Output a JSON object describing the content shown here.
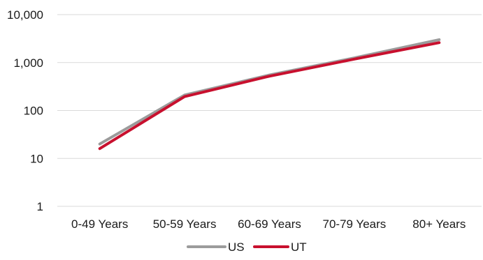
{
  "chart_data": {
    "type": "line",
    "title": "",
    "xlabel": "",
    "ylabel": "",
    "yscale": "log",
    "ylim": [
      1,
      10000
    ],
    "yticks": [
      1,
      10,
      100,
      1000,
      10000
    ],
    "ytick_labels": [
      "1",
      "10",
      "100",
      "1,000",
      "10,000"
    ],
    "grid": "horizontal",
    "legend_position": "bottom",
    "categories": [
      "0-49 Years",
      "50-59 Years",
      "60-69 Years",
      "70-79 Years",
      "80+ Years"
    ],
    "series": [
      {
        "name": "US",
        "color": "#9b9b9b",
        "values": [
          20,
          210,
          550,
          1250,
          3000
        ]
      },
      {
        "name": "UT",
        "color": "#c8102e",
        "values": [
          16,
          195,
          520,
          1180,
          2600
        ]
      }
    ]
  }
}
